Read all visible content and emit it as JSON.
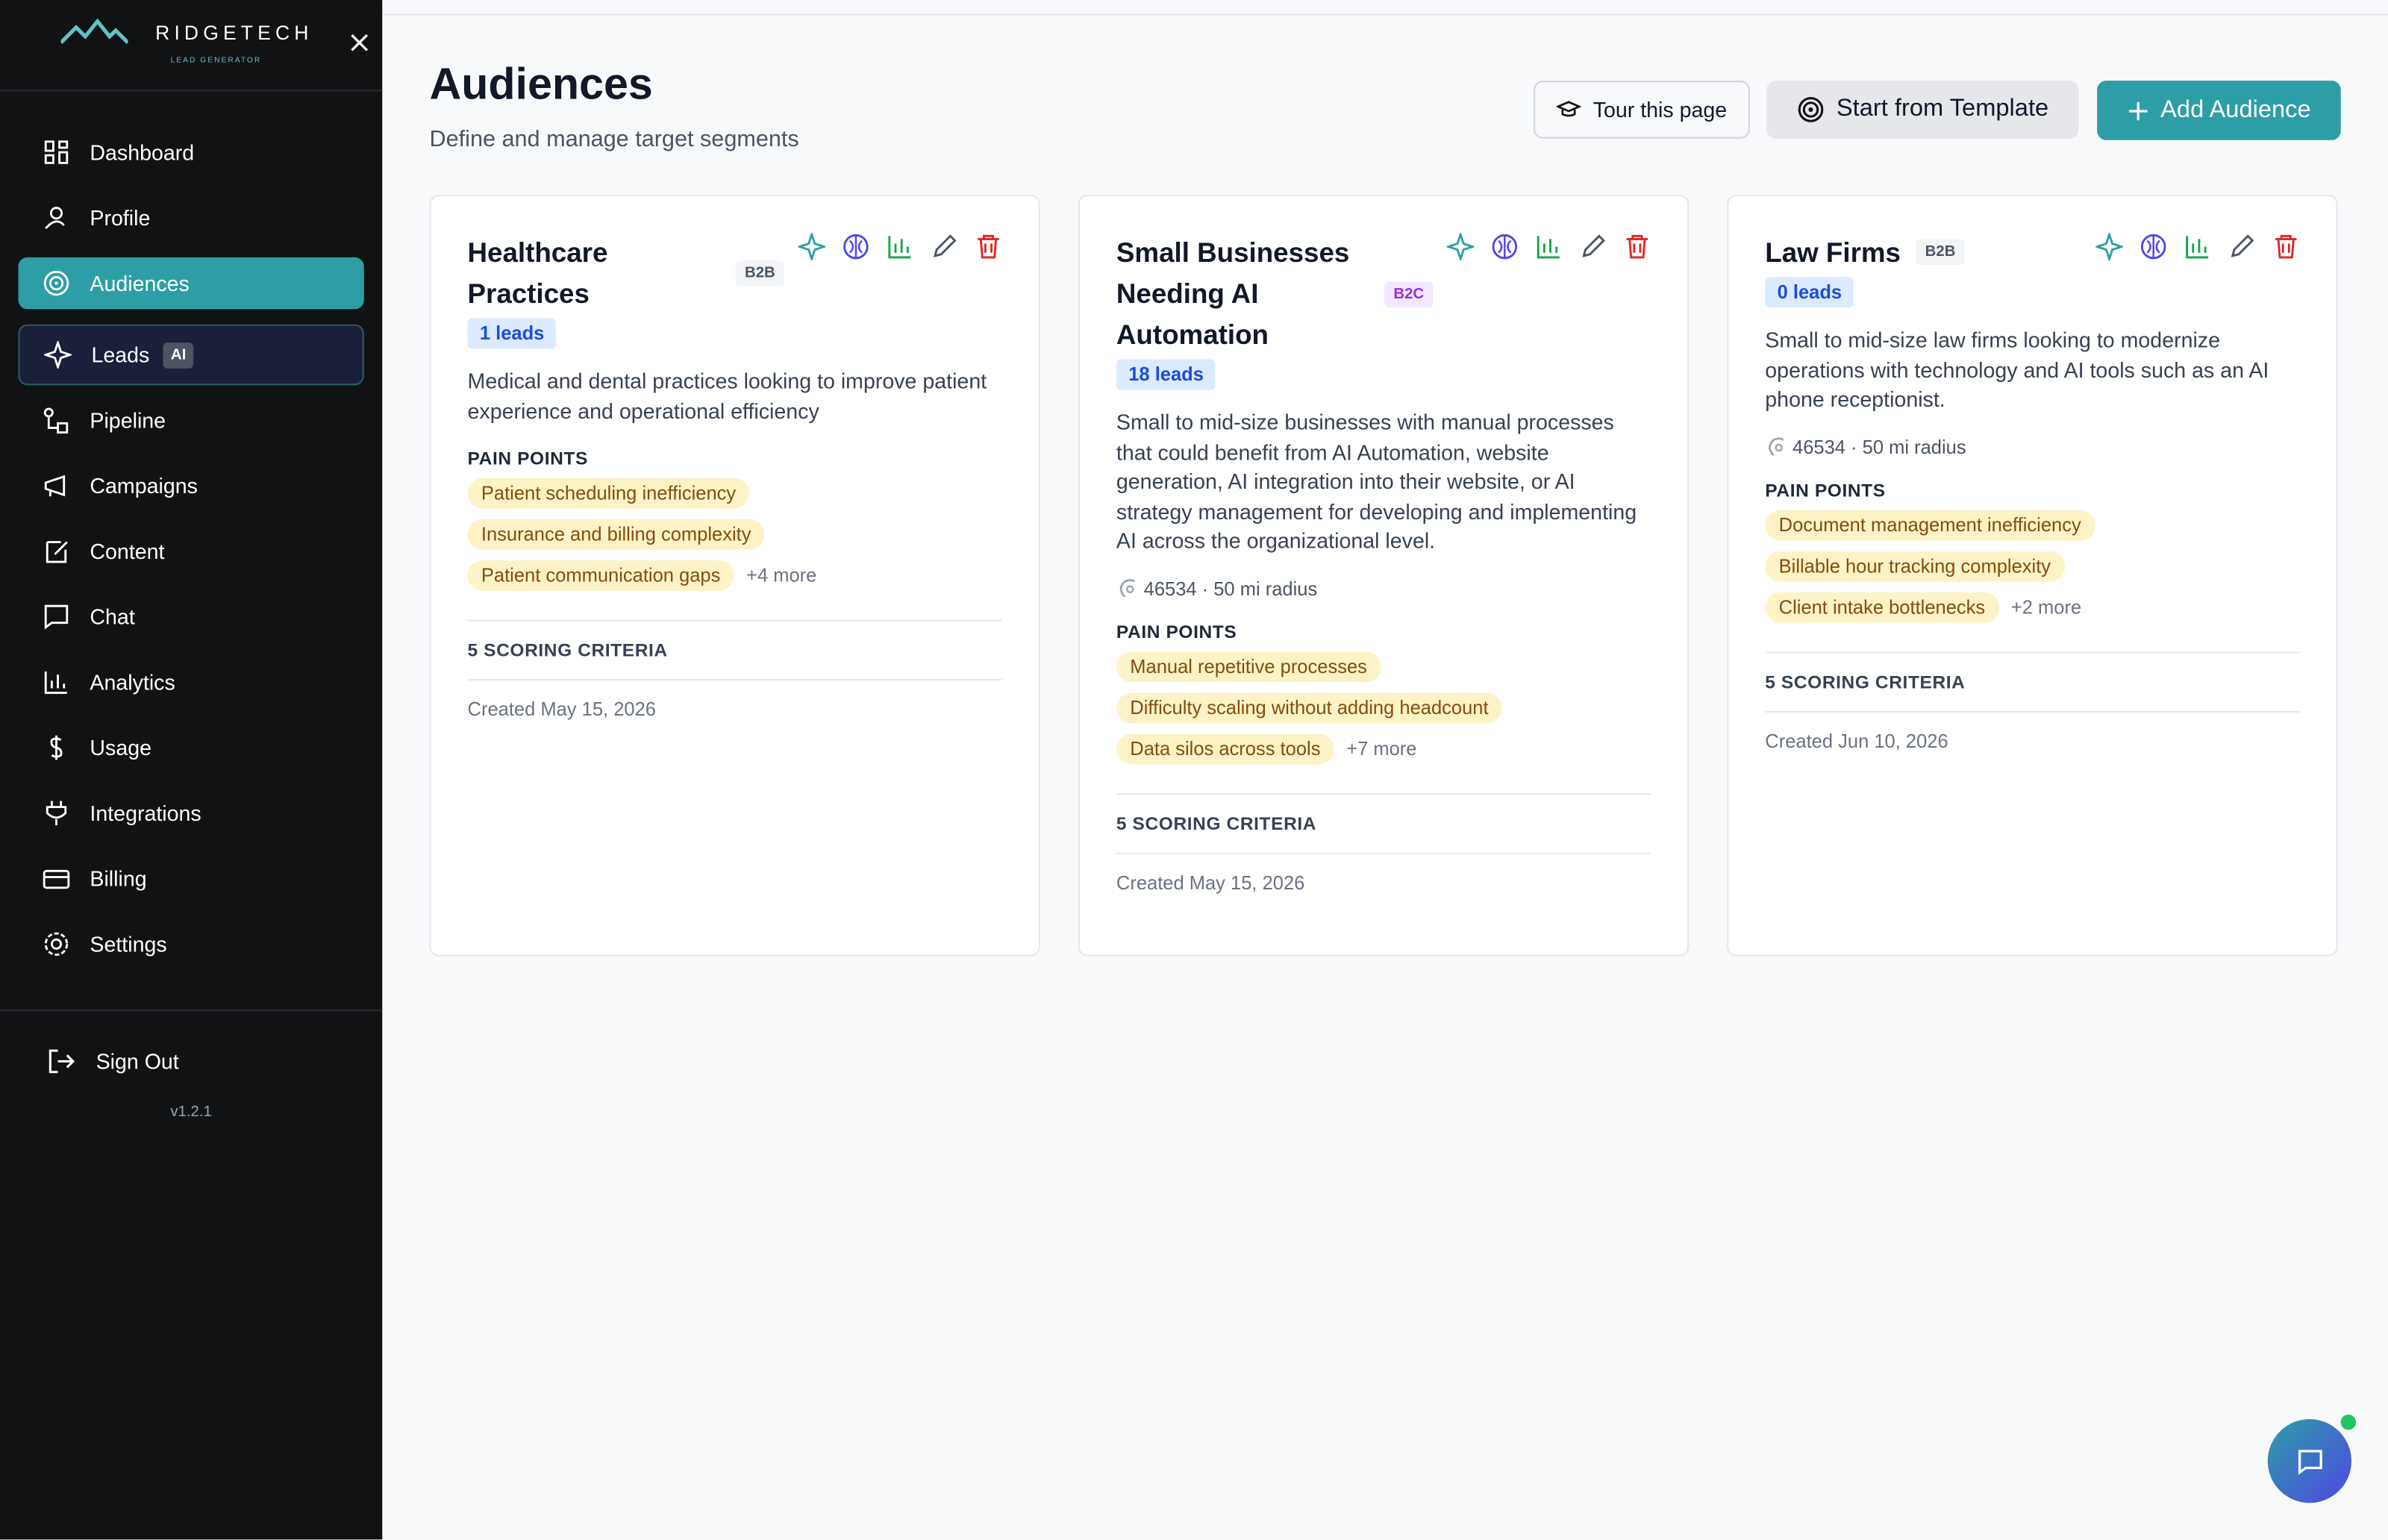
{
  "brand": {
    "name": "RIDGETECH",
    "tagline": "LEAD GENERATOR"
  },
  "nav": [
    {
      "label": "Dashboard"
    },
    {
      "label": "Profile"
    },
    {
      "label": "Audiences",
      "active": true
    },
    {
      "label": "Leads",
      "badge": "AI",
      "highlight": true
    },
    {
      "label": "Pipeline"
    },
    {
      "label": "Campaigns"
    },
    {
      "label": "Content"
    },
    {
      "label": "Chat"
    },
    {
      "label": "Analytics"
    },
    {
      "label": "Usage"
    },
    {
      "label": "Integrations"
    },
    {
      "label": "Billing"
    },
    {
      "label": "Settings"
    }
  ],
  "sign_out": "Sign Out",
  "version": "v1.2.1",
  "header": {
    "title": "Audiences",
    "subtitle": "Define and manage target segments"
  },
  "buttons": [
    "Tour this page",
    "Start from Template",
    "Add Audience"
  ],
  "cards": [
    {
      "title": "Healthcare Practices",
      "type": "B2B",
      "leads": "1 leads",
      "description": "Medical and dental practices looking to improve patient experience and operational efficiency",
      "pain_points_label": "PAIN POINTS",
      "pain_points": [
        "Patient scheduling inefficiency",
        "Insurance and billing complexity",
        "Patient communication gaps"
      ],
      "more": "+4 more",
      "criteria": "5 SCORING CRITERIA",
      "created": "Created May 15, 2026"
    },
    {
      "title": "Small Businesses Needing AI Automation",
      "type": "B2C",
      "leads": "18 leads",
      "description": "Small to mid-size businesses with manual processes that could benefit from AI Automation, website generation, AI integration into their website, or AI strategy management for developing and implementing AI across the organizational level.",
      "location": "46534 · 50 mi radius",
      "pain_points_label": "PAIN POINTS",
      "pain_points": [
        "Manual repetitive processes",
        "Difficulty scaling without adding headcount",
        "Data silos across tools"
      ],
      "more": "+7 more",
      "criteria": "5 SCORING CRITERIA",
      "created": "Created May 15, 2026"
    },
    {
      "title": "Law Firms",
      "type": "B2B",
      "leads": "0 leads",
      "description": "Small to mid-size law firms looking to modernize operations with technology and AI tools such as an AI phone receptionist.",
      "location": "46534 · 50 mi radius",
      "pain_points_label": "PAIN POINTS",
      "pain_points": [
        "Document management inefficiency",
        "Billable hour tracking complexity",
        "Client intake bottlenecks"
      ],
      "more": "+2 more",
      "criteria": "5 SCORING CRITERIA",
      "created": "Created Jun 10, 2026"
    }
  ]
}
